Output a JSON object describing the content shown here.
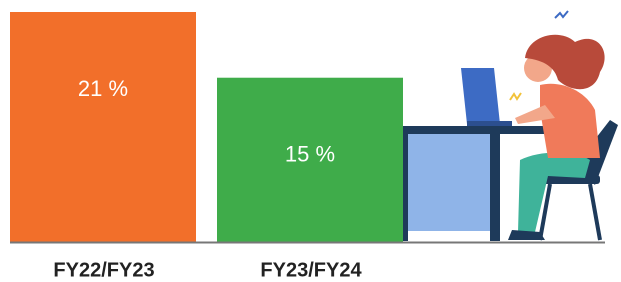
{
  "chart_data": {
    "type": "bar",
    "categories": [
      "FY22/FY23",
      "FY23/FY24"
    ],
    "values": [
      21,
      15
    ],
    "value_labels": [
      "21 %",
      "15 %"
    ],
    "colors": [
      "#f26f2a",
      "#3fac4a"
    ]
  }
}
